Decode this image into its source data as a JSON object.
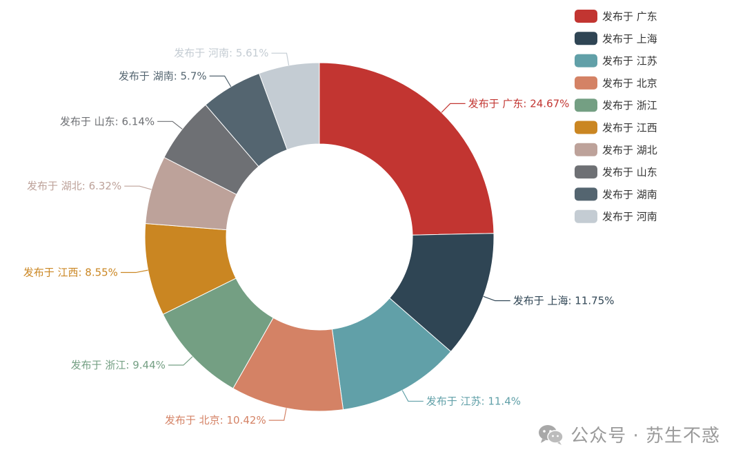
{
  "chart_data": {
    "type": "pie",
    "style": "donut",
    "legend_position": "top-right",
    "slices": [
      {
        "name": "发布于 广东",
        "value": 24.67,
        "label": "发布于 广东: 24.67%",
        "color": "#c23531"
      },
      {
        "name": "发布于 上海",
        "value": 11.75,
        "label": "发布于 上海: 11.75%",
        "color": "#2f4554"
      },
      {
        "name": "发布于 江苏",
        "value": 11.4,
        "label": "发布于 江苏: 11.4%",
        "color": "#61a0a8"
      },
      {
        "name": "发布于 北京",
        "value": 10.42,
        "label": "发布于 北京: 10.42%",
        "color": "#d48265"
      },
      {
        "name": "发布于 浙江",
        "value": 9.44,
        "label": "发布于 浙江: 9.44%",
        "color": "#749f83"
      },
      {
        "name": "发布于 江西",
        "value": 8.55,
        "label": "发布于 江西: 8.55%",
        "color": "#ca8622"
      },
      {
        "name": "发布于 湖北",
        "value": 6.32,
        "label": "发布于 湖北: 6.32%",
        "color": "#bda29a"
      },
      {
        "name": "发布于 山东",
        "value": 6.14,
        "label": "发布于 山东: 6.14%",
        "color": "#6e7074"
      },
      {
        "name": "发布于 湖南",
        "value": 5.7,
        "label": "发布于 湖南: 5.7%",
        "color": "#546570"
      },
      {
        "name": "发布于 河南",
        "value": 5.61,
        "label": "发布于 河南: 5.61%",
        "color": "#c4ccd3"
      }
    ]
  },
  "watermark": {
    "text": "公众号 · 苏生不惑",
    "icon": "wechat-icon"
  }
}
